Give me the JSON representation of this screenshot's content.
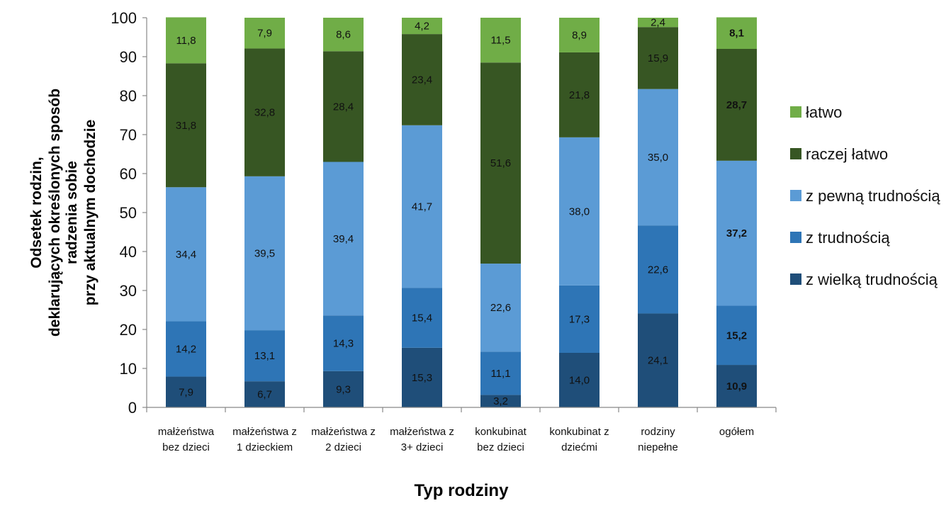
{
  "chart_data": {
    "type": "bar",
    "stacked": true,
    "xlabel": "Typ rodziny",
    "ylabel_lines": [
      "Odsetek rodzin,",
      "deklarujących określonych sposób",
      "radzenia sobie",
      "przy aktualnym dochodzie"
    ],
    "ylim": [
      0,
      100
    ],
    "yticks": [
      0,
      10,
      20,
      30,
      40,
      50,
      60,
      70,
      80,
      90,
      100
    ],
    "legend_position": "right",
    "categories": [
      [
        "małżeństwa",
        "bez dzieci"
      ],
      [
        "małżeństwa z",
        "1 dzieckiem"
      ],
      [
        "małżeństwa z",
        "2 dzieci"
      ],
      [
        "małżeństwa z",
        "3+ dzieci"
      ],
      [
        "konkubinat",
        "bez dzieci"
      ],
      [
        "konkubinat z",
        "dziećmi"
      ],
      [
        "rodziny",
        "niepełne"
      ],
      [
        "ogółem"
      ]
    ],
    "bold_categories": [
      7
    ],
    "series": [
      {
        "name": "z wielką trudnością",
        "color": "#1f4e79",
        "values": [
          7.9,
          6.7,
          9.3,
          15.3,
          3.2,
          14.0,
          24.1,
          10.9
        ],
        "labels": [
          "7,9",
          "6,7",
          "9,3",
          "15,3",
          "3,2",
          "14,0",
          "24,1",
          "10,9"
        ]
      },
      {
        "name": "z trudnością",
        "color": "#2e75b6",
        "values": [
          14.2,
          13.1,
          14.3,
          15.4,
          11.1,
          17.3,
          22.6,
          15.2
        ],
        "labels": [
          "14,2",
          "13,1",
          "14,3",
          "15,4",
          "11,1",
          "17,3",
          "22,6",
          "15,2"
        ]
      },
      {
        "name": "z pewną trudnością",
        "color": "#5b9bd5",
        "values": [
          34.4,
          39.5,
          39.4,
          41.7,
          22.6,
          38.0,
          35.0,
          37.2
        ],
        "labels": [
          "34,4",
          "39,5",
          "39,4",
          "41,7",
          "22,6",
          "38,0",
          "35,0",
          "37,2"
        ]
      },
      {
        "name": "raczej łatwo",
        "color": "#375623",
        "values": [
          31.8,
          32.8,
          28.4,
          23.4,
          51.6,
          21.8,
          15.9,
          28.7
        ],
        "labels": [
          "31,8",
          "32,8",
          "28,4",
          "23,4",
          "51,6",
          "21,8",
          "15,9",
          "28,7"
        ]
      },
      {
        "name": "łatwo",
        "color": "#70ad47",
        "values": [
          11.8,
          7.9,
          8.6,
          4.2,
          11.5,
          8.9,
          2.4,
          8.1
        ],
        "labels": [
          "11,8",
          "7,9",
          "8,6",
          "4,2",
          "11,5",
          "8,9",
          "2,4",
          "8,1"
        ]
      }
    ],
    "legend_order": [
      "łatwo",
      "raczej łatwo",
      "z pewną trudnością",
      "z trudnością",
      "z wielką trudnością"
    ]
  }
}
